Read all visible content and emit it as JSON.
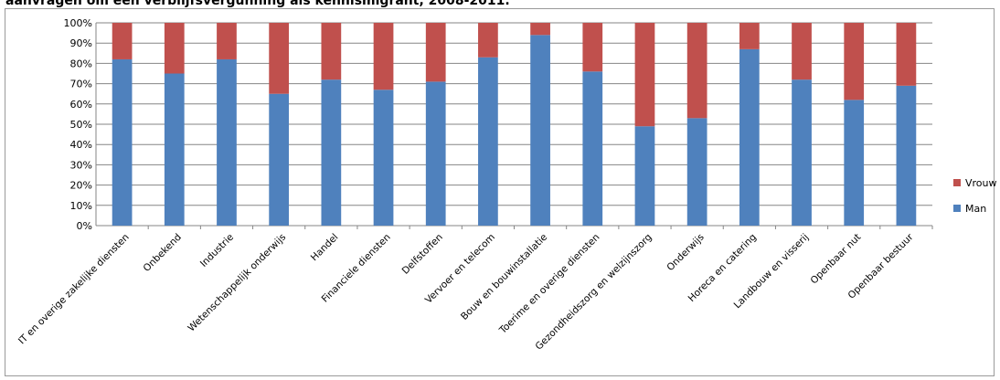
{
  "title": "aanvragen om een verblijfsvergunning als kennismigrant, 2008-2011.",
  "chart_data": {
    "type": "bar",
    "stacked": true,
    "percent_stacked": true,
    "categories": [
      "IT en overige zakelijke diensten",
      "Onbekend",
      "Industrie",
      "Wetenschappelijk onderwijs",
      "Handel",
      "Financiele diensten",
      "Delfstoffen",
      "Vervoer en telecom",
      "Bouw en bouwinstallatie",
      "Toerime en overige diensten",
      "Gezondheidszorg en welzijnszorg",
      "Onderwijs",
      "Horeca en catering",
      "Landbouw en visserij",
      "Openbaar nut",
      "Openbaar bestuur"
    ],
    "series": [
      {
        "name": "Man",
        "color": "#4f81bd",
        "values": [
          82,
          75,
          82,
          65,
          72,
          67,
          71,
          83,
          94,
          76,
          49,
          53,
          87,
          72,
          62,
          69
        ]
      },
      {
        "name": "Vrouw",
        "color": "#c0504d",
        "values": [
          18,
          25,
          18,
          35,
          28,
          33,
          29,
          17,
          6,
          24,
          51,
          47,
          13,
          28,
          38,
          31
        ]
      }
    ],
    "ylim": [
      0,
      100
    ],
    "yticks": [
      "0%",
      "10%",
      "20%",
      "30%",
      "40%",
      "50%",
      "60%",
      "70%",
      "80%",
      "90%",
      "100%"
    ],
    "grid": true,
    "legend": {
      "position": "right",
      "entries": [
        "Vrouw",
        "Man"
      ]
    }
  }
}
